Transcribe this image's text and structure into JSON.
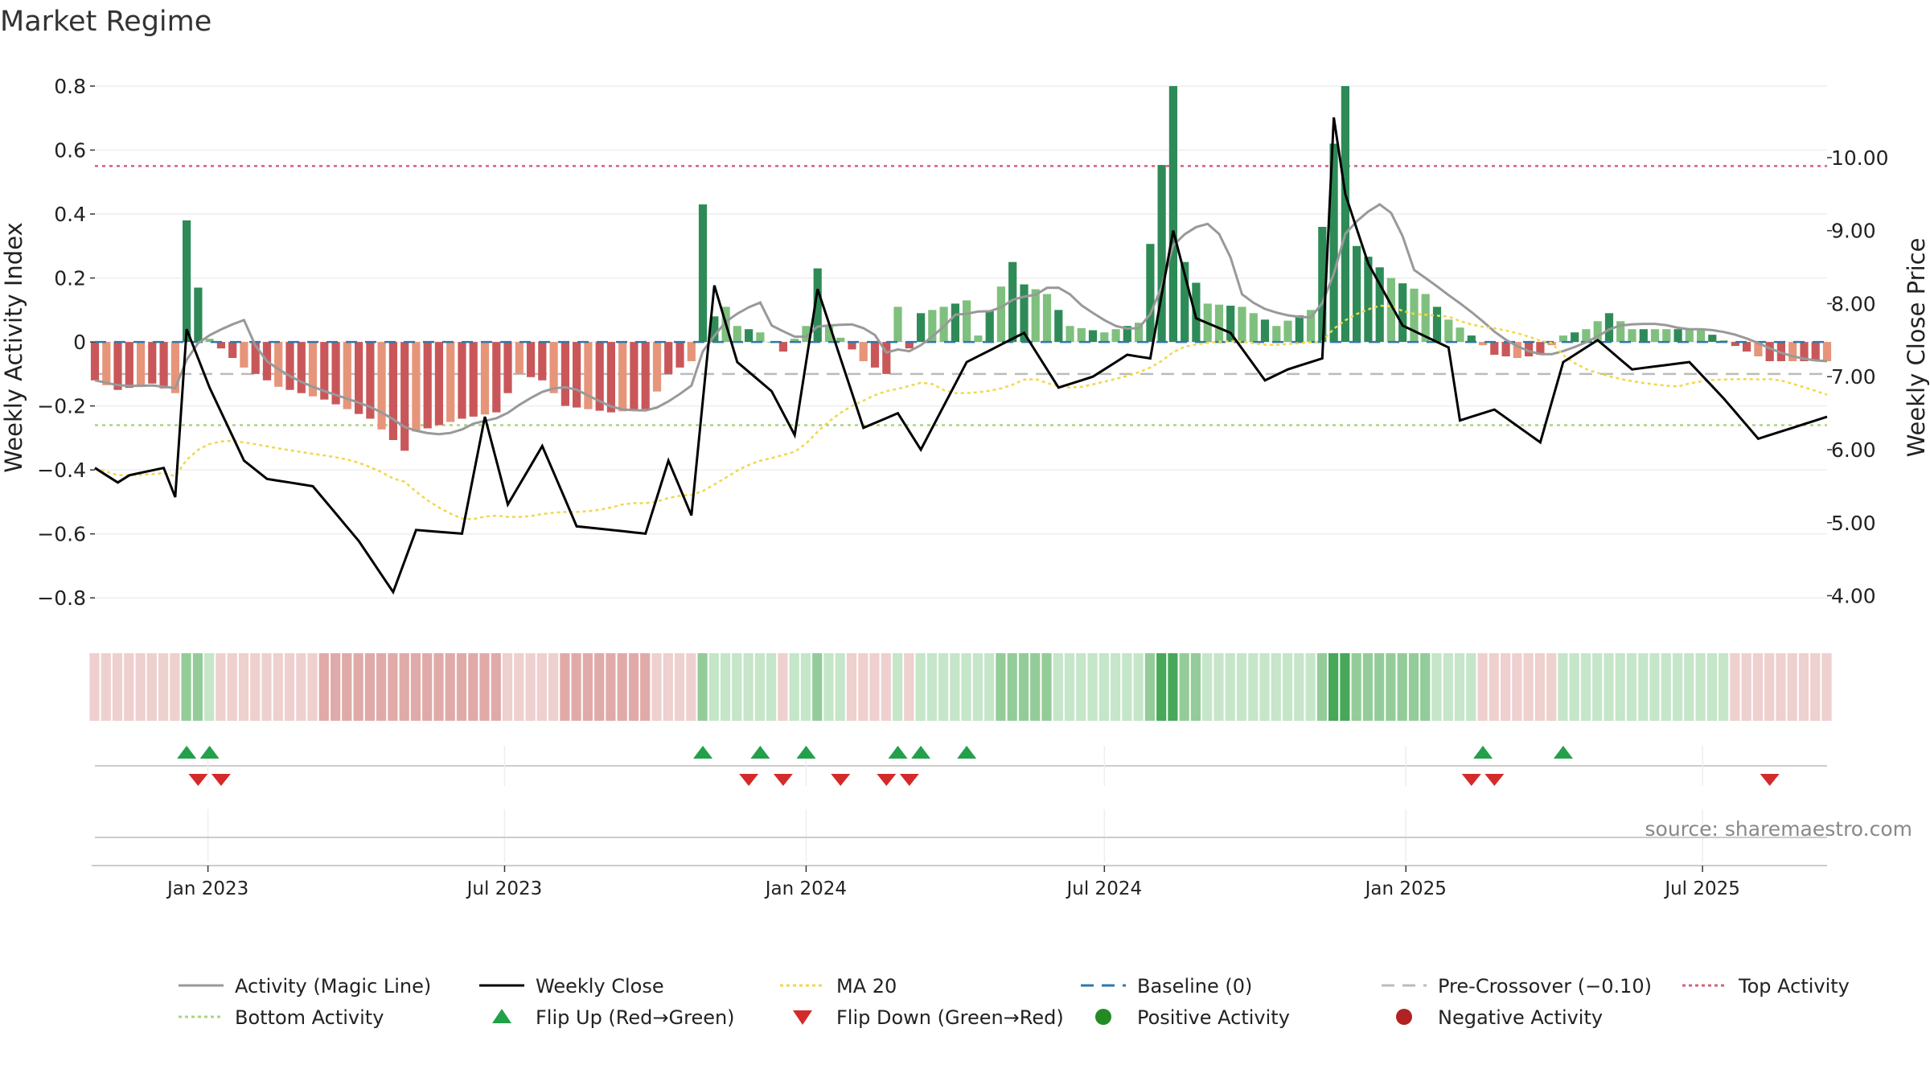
{
  "chart_data": {
    "type": "bar",
    "title": "Market Regime",
    "source": "source: sharemaestro.com",
    "y_left": {
      "label": "Weekly Activity Index",
      "range": [
        -0.88,
        0.8
      ],
      "ticks": [
        0.8,
        0.6,
        0.4,
        0.2,
        0,
        -0.2,
        -0.4,
        -0.6,
        -0.8
      ],
      "tick_labels": [
        "0.8",
        "0.6",
        "0.4",
        "0.2",
        "0",
        "−0.2",
        "−0.4",
        "−0.6",
        "−0.8"
      ]
    },
    "y_right": {
      "label": "Weekly Close Price",
      "range": [
        3.62,
        10.98
      ],
      "ticks": [
        10,
        9,
        8,
        7,
        6,
        5,
        4
      ],
      "tick_labels": [
        "10.00",
        "9.00",
        "8.00",
        "7.00",
        "6.00",
        "5.00",
        "4.00"
      ]
    },
    "x_axis": {
      "start": "2022-10-24",
      "end": "2025-09-15",
      "ticks": [
        "2023-01-01",
        "2023-07-01",
        "2024-01-01",
        "2024-07-01",
        "2025-01-01",
        "2025-07-01"
      ],
      "tick_labels": [
        "Jan 2023",
        "Jul 2023",
        "Jan 2024",
        "Jul 2024",
        "Jan 2025",
        "Jul 2025"
      ]
    },
    "reference_lines": {
      "top_activity": 0.55,
      "bottom_activity": -0.26,
      "pre_crossover": -0.1,
      "baseline": 0
    },
    "activity_keyframes": [
      [
        "2022-10-24",
        -0.12
      ],
      [
        "2022-11-07",
        -0.15
      ],
      [
        "2022-11-28",
        -0.13
      ],
      [
        "2022-12-12",
        -0.16
      ],
      [
        "2022-12-19",
        0.38
      ],
      [
        "2022-12-26",
        0.17
      ],
      [
        "2023-01-02",
        0.01
      ],
      [
        "2023-01-09",
        -0.02
      ],
      [
        "2023-01-23",
        -0.08
      ],
      [
        "2023-02-13",
        -0.14
      ],
      [
        "2023-03-13",
        -0.18
      ],
      [
        "2023-04-10",
        -0.24
      ],
      [
        "2023-05-01",
        -0.34
      ],
      [
        "2023-05-08",
        -0.28
      ],
      [
        "2023-06-05",
        -0.24
      ],
      [
        "2023-06-26",
        -0.22
      ],
      [
        "2023-07-10",
        -0.1
      ],
      [
        "2023-07-24",
        -0.12
      ],
      [
        "2023-08-07",
        -0.2
      ],
      [
        "2023-09-04",
        -0.22
      ],
      [
        "2023-09-25",
        -0.21
      ],
      [
        "2023-10-09",
        -0.1
      ],
      [
        "2023-10-23",
        -0.06
      ],
      [
        "2023-10-30",
        0.43
      ],
      [
        "2023-11-06",
        0.08
      ],
      [
        "2023-11-13",
        0.11
      ],
      [
        "2023-11-20",
        0.05
      ],
      [
        "2023-12-04",
        0.03
      ],
      [
        "2023-12-18",
        -0.03
      ],
      [
        "2024-01-01",
        0.05
      ],
      [
        "2024-01-08",
        0.23
      ],
      [
        "2024-01-15",
        0.05
      ],
      [
        "2024-02-05",
        -0.06
      ],
      [
        "2024-02-19",
        -0.1
      ],
      [
        "2024-02-26",
        0.11
      ],
      [
        "2024-03-04",
        -0.02
      ],
      [
        "2024-03-11",
        0.09
      ],
      [
        "2024-04-08",
        0.13
      ],
      [
        "2024-04-15",
        0.02
      ],
      [
        "2024-05-06",
        0.25
      ],
      [
        "2024-05-13",
        0.18
      ],
      [
        "2024-05-27",
        0.15
      ],
      [
        "2024-06-10",
        0.05
      ],
      [
        "2024-07-01",
        0.03
      ],
      [
        "2024-07-22",
        0.06
      ],
      [
        "2024-08-12",
        0.8
      ],
      [
        "2024-08-19",
        0.25
      ],
      [
        "2024-09-02",
        0.12
      ],
      [
        "2024-09-23",
        0.11
      ],
      [
        "2024-10-14",
        0.05
      ],
      [
        "2024-11-04",
        0.1
      ],
      [
        "2024-11-18",
        0.62
      ],
      [
        "2024-11-25",
        0.8
      ],
      [
        "2024-12-02",
        0.3
      ],
      [
        "2024-12-23",
        0.2
      ],
      [
        "2025-01-13",
        0.15
      ],
      [
        "2025-01-27",
        0.07
      ],
      [
        "2025-02-10",
        0.02
      ],
      [
        "2025-02-24",
        -0.04
      ],
      [
        "2025-03-10",
        -0.05
      ],
      [
        "2025-03-24",
        -0.04
      ],
      [
        "2025-04-07",
        0.02
      ],
      [
        "2025-04-21",
        0.04
      ],
      [
        "2025-05-05",
        0.09
      ],
      [
        "2025-05-19",
        0.04
      ],
      [
        "2025-06-09",
        0.04
      ],
      [
        "2025-06-30",
        0.04
      ],
      [
        "2025-07-28",
        -0.03
      ],
      [
        "2025-08-11",
        -0.06
      ],
      [
        "2025-09-15",
        -0.06
      ]
    ],
    "close_keyframes": [
      [
        "2022-10-24",
        5.75
      ],
      [
        "2022-11-07",
        5.55
      ],
      [
        "2022-11-14",
        5.65
      ],
      [
        "2022-12-05",
        5.75
      ],
      [
        "2022-12-12",
        5.35
      ],
      [
        "2022-12-19",
        7.65
      ],
      [
        "2023-01-02",
        6.85
      ],
      [
        "2023-01-23",
        5.85
      ],
      [
        "2023-02-06",
        5.6
      ],
      [
        "2023-03-06",
        5.5
      ],
      [
        "2023-04-03",
        4.75
      ],
      [
        "2023-04-24",
        4.05
      ],
      [
        "2023-05-08",
        4.9
      ],
      [
        "2023-06-05",
        4.85
      ],
      [
        "2023-06-19",
        6.45
      ],
      [
        "2023-07-03",
        5.25
      ],
      [
        "2023-07-24",
        6.05
      ],
      [
        "2023-08-14",
        4.95
      ],
      [
        "2023-09-04",
        4.9
      ],
      [
        "2023-09-25",
        4.85
      ],
      [
        "2023-10-09",
        5.85
      ],
      [
        "2023-10-23",
        5.1
      ],
      [
        "2023-11-06",
        8.25
      ],
      [
        "2023-11-20",
        7.2
      ],
      [
        "2023-12-11",
        6.8
      ],
      [
        "2023-12-25",
        6.2
      ],
      [
        "2024-01-08",
        8.2
      ],
      [
        "2024-02-05",
        6.3
      ],
      [
        "2024-02-26",
        6.5
      ],
      [
        "2024-03-11",
        6.0
      ],
      [
        "2024-04-08",
        7.2
      ],
      [
        "2024-05-13",
        7.6
      ],
      [
        "2024-06-03",
        6.85
      ],
      [
        "2024-06-24",
        7.0
      ],
      [
        "2024-07-15",
        7.3
      ],
      [
        "2024-07-29",
        7.25
      ],
      [
        "2024-08-12",
        9.0
      ],
      [
        "2024-08-26",
        7.8
      ],
      [
        "2024-09-16",
        7.6
      ],
      [
        "2024-10-07",
        6.95
      ],
      [
        "2024-10-21",
        7.1
      ],
      [
        "2024-11-11",
        7.25
      ],
      [
        "2024-11-18",
        10.55
      ],
      [
        "2024-11-25",
        9.5
      ],
      [
        "2024-12-09",
        8.55
      ],
      [
        "2024-12-30",
        7.7
      ],
      [
        "2025-01-27",
        7.4
      ],
      [
        "2025-02-03",
        6.4
      ],
      [
        "2025-02-24",
        6.55
      ],
      [
        "2025-03-24",
        6.1
      ],
      [
        "2025-04-07",
        7.2
      ],
      [
        "2025-04-28",
        7.5
      ],
      [
        "2025-05-19",
        7.1
      ],
      [
        "2025-06-23",
        7.2
      ],
      [
        "2025-07-14",
        6.7
      ],
      [
        "2025-08-04",
        6.15
      ],
      [
        "2025-09-15",
        6.45
      ]
    ],
    "regime_band_note": "",
    "flip_up_dates": [
      "2022-12-19",
      "2023-01-02",
      "2023-10-30",
      "2023-12-04",
      "2024-01-01",
      "2024-02-26",
      "2024-03-11",
      "2024-04-08",
      "2025-02-17",
      "2025-04-07"
    ],
    "flip_down_dates": [
      "2022-12-26",
      "2023-01-09",
      "2023-11-27",
      "2023-12-18",
      "2024-01-22",
      "2024-02-19",
      "2024-03-04",
      "2025-02-10",
      "2025-02-24",
      "2025-08-11"
    ],
    "colors": {
      "pos_strong": "#2e8b57",
      "pos_light": "#7fc07f",
      "neg_strong": "#c9575a",
      "neg_light": "#e6957a",
      "band_pos_strong": "#47a85a",
      "band_pos_mid": "#93cc98",
      "band_pos_light": "#c5e6c8",
      "band_neg_mid": "#e0aaa8",
      "band_neg_light": "#eed0ce",
      "close": "#000000",
      "magic": "#999999",
      "ma": "#f0d84a",
      "baseline": "#2f77a8",
      "pre": "#bbbbbb",
      "top": "#d8607a",
      "bottom": "#a8d67e",
      "flip_up": "#22a04a",
      "flip_down": "#d42a2a",
      "positive": "#238b23",
      "negative": "#b22222"
    },
    "legend": [
      {
        "label": "Activity (Magic Line)",
        "kind": "line",
        "color": "#999999"
      },
      {
        "label": "Weekly Close",
        "kind": "line",
        "color": "#000000"
      },
      {
        "label": "MA 20",
        "kind": "dotted",
        "color": "#f0d84a"
      },
      {
        "label": "Baseline (0)",
        "kind": "dashed",
        "color": "#2f77a8"
      },
      {
        "label": "Pre-Crossover (−0.10)",
        "kind": "dashed",
        "color": "#bbbbbb"
      },
      {
        "label": "Top Activity",
        "kind": "dotted",
        "color": "#d8607a"
      },
      {
        "label": "Bottom Activity",
        "kind": "dotted",
        "color": "#a8d67e"
      },
      {
        "label": "Flip Up (Red→Green)",
        "kind": "tri-up",
        "color": "#22a04a"
      },
      {
        "label": "Flip Down (Green→Red)",
        "kind": "tri-down",
        "color": "#d42a2a"
      },
      {
        "label": "Positive Activity",
        "kind": "dot",
        "color": "#238b23"
      },
      {
        "label": "Negative Activity",
        "kind": "dot",
        "color": "#b22222"
      }
    ]
  }
}
